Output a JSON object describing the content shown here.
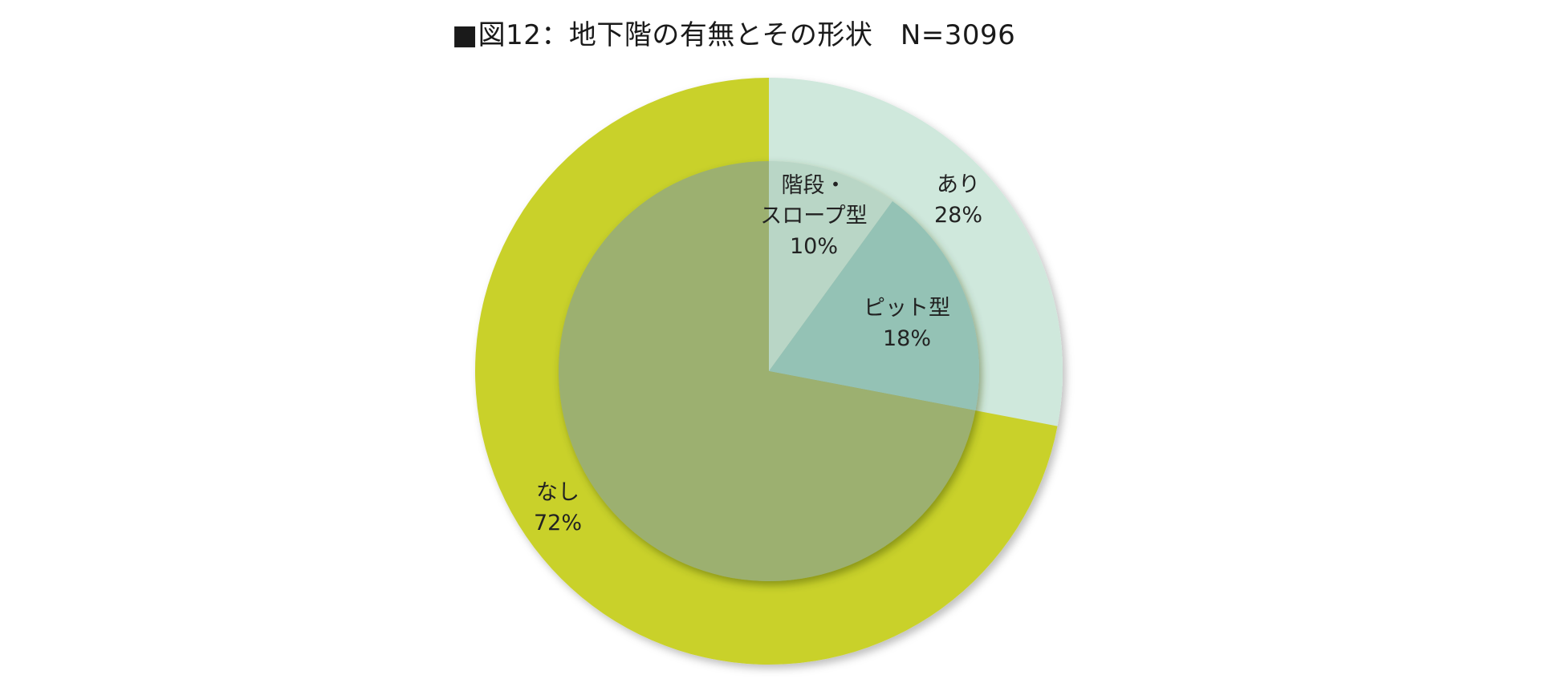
{
  "title": "■図12：地下階の有無とその形状　N=3096",
  "chart_data": {
    "type": "pie",
    "title": "■図12：地下階の有無とその形状　N=3096",
    "rings": [
      {
        "ring": "outer",
        "slices": [
          {
            "label": "あり",
            "value": 28,
            "value_label": "28%",
            "color": "#cfe8dc"
          },
          {
            "label": "なし",
            "value": 72,
            "value_label": "72%",
            "color": "#c9d12c"
          }
        ]
      },
      {
        "ring": "inner",
        "slices": [
          {
            "label": "階段・\nスロープ型",
            "value": 10,
            "value_label": "10%",
            "color": "#b9d6c6"
          },
          {
            "label": "ピット型",
            "value": 18,
            "value_label": "18%",
            "color": "#94c2b5"
          },
          {
            "label": "",
            "value": 72,
            "value_label": "",
            "color": "#9cb070"
          }
        ]
      }
    ],
    "start_angle": "12 o'clock",
    "direction": "clockwise",
    "legend": "none"
  }
}
